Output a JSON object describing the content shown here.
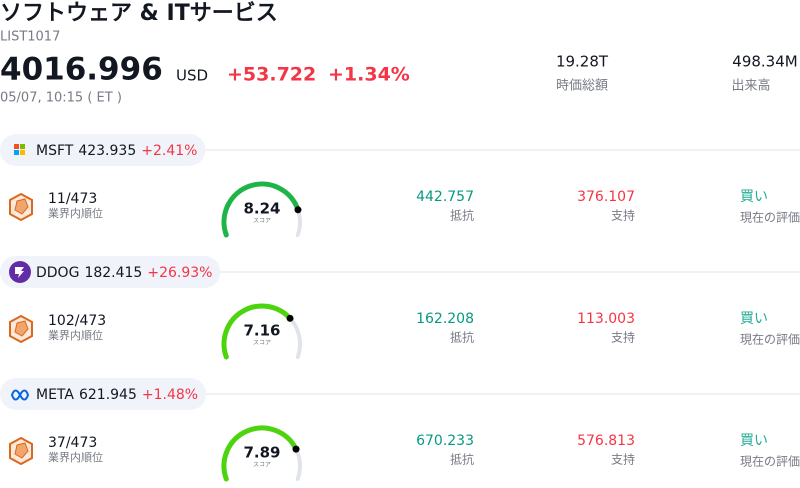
{
  "header": {
    "title": "ソフトウェア & ITサービス",
    "code": "LIST1017",
    "price": "4016.996",
    "currency": "USD",
    "change": "+53.722",
    "change_pct": "+1.34%",
    "time": "05/07, 10:15 ( ET )",
    "stats": [
      {
        "value": "19.28T",
        "label": "時価総額"
      },
      {
        "value": "498.34M",
        "label": "出来高"
      }
    ]
  },
  "score_scale": [
    0,
    10
  ],
  "stocks": [
    {
      "ticker": "MSFT",
      "price": "423.935",
      "change": "+2.41%",
      "rank": "11/473",
      "rank_label": "業界内順位",
      "score": 8.24,
      "score_label": "スコア",
      "gauge_color": "#1fb447",
      "resistance": "442.757",
      "resistance_label": "抵抗",
      "support": "376.107",
      "support_label": "支持",
      "rating": "買い",
      "rating_label": "現在の評価"
    },
    {
      "ticker": "DDOG",
      "price": "182.415",
      "change": "+26.93%",
      "rank": "102/473",
      "rank_label": "業界内順位",
      "score": 7.16,
      "score_label": "スコア",
      "gauge_color": "#4cd40f",
      "resistance": "162.208",
      "resistance_label": "抵抗",
      "support": "113.003",
      "support_label": "支持",
      "rating": "買い",
      "rating_label": "現在の評価"
    },
    {
      "ticker": "META",
      "price": "621.945",
      "change": "+1.48%",
      "rank": "37/473",
      "rank_label": "業界内順位",
      "score": 7.89,
      "score_label": "スコア",
      "gauge_color": "#4cd40f",
      "resistance": "670.233",
      "resistance_label": "抵抗",
      "support": "576.813",
      "support_label": "支持",
      "rating": "買い",
      "rating_label": "現在の評価"
    }
  ]
}
